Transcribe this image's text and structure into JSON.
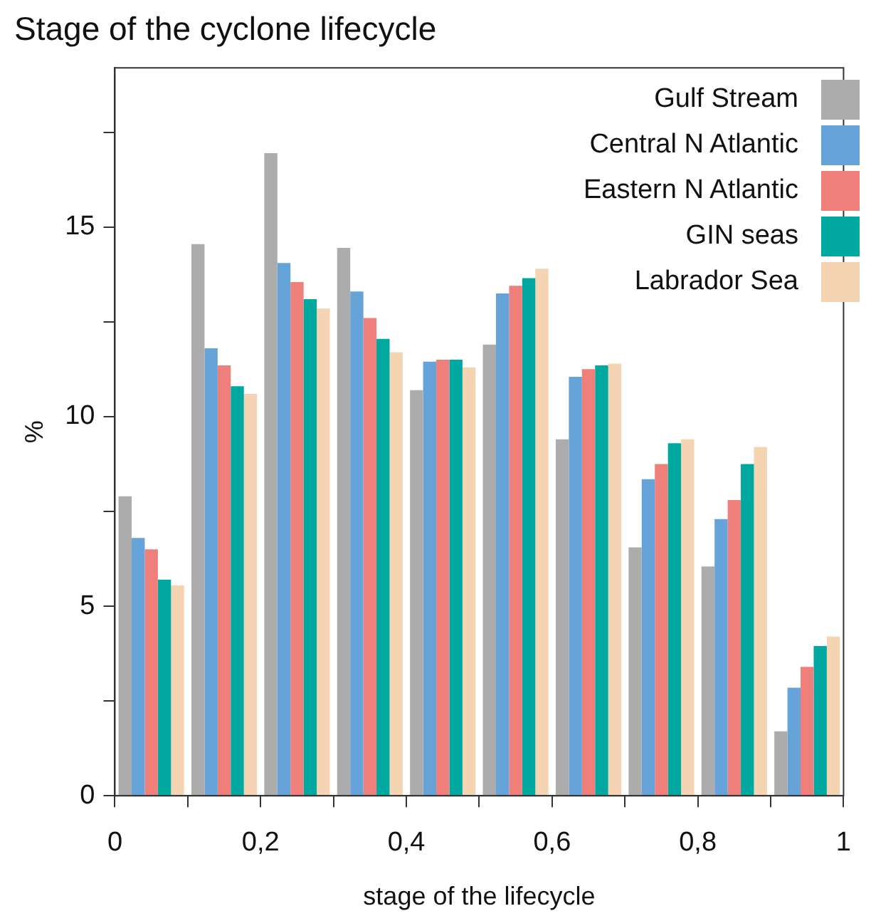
{
  "chart_data": {
    "type": "histogram",
    "title": "Stage of the cyclone lifecycle",
    "xlabel": "stage of the lifecycle",
    "ylabel": "%",
    "bins": [
      0,
      0.1,
      0.2,
      0.3,
      0.4,
      0.5,
      0.6,
      0.7,
      0.8,
      0.9,
      1
    ],
    "series": [
      {
        "name": "Gulf Stream",
        "color": "#acacac",
        "values": [
          7.9,
          14.55,
          16.95,
          14.45,
          10.7,
          11.9,
          9.4,
          6.55,
          6.05,
          1.7
        ]
      },
      {
        "name": "Central N Atlantic",
        "color": "#66a3d9",
        "values": [
          6.8,
          11.8,
          14.05,
          13.3,
          11.45,
          13.25,
          11.05,
          8.35,
          7.3,
          2.85
        ]
      },
      {
        "name": "Eastern N Atlantic",
        "color": "#ef7f7a",
        "values": [
          6.5,
          11.35,
          13.55,
          12.6,
          11.5,
          13.45,
          11.25,
          8.75,
          7.8,
          3.4
        ]
      },
      {
        "name": "GIN seas",
        "color": "#00a8a0",
        "values": [
          5.7,
          10.8,
          13.1,
          12.05,
          11.5,
          13.65,
          11.35,
          9.3,
          8.75,
          3.95
        ]
      },
      {
        "name": "Labrador Sea",
        "color": "#f4d4b2",
        "values": [
          5.55,
          10.6,
          12.85,
          11.7,
          11.3,
          13.9,
          11.4,
          9.4,
          9.2,
          4.2
        ]
      }
    ],
    "xlim": [
      0,
      1
    ],
    "xticks": [
      0,
      {
        "value": 0.1,
        "label": null
      },
      {
        "value": 0.2,
        "label": "0,2"
      },
      {
        "value": 0.3,
        "label": null
      },
      {
        "value": 0.4,
        "label": "0,4"
      },
      {
        "value": 0.5,
        "label": null
      },
      {
        "value": 0.6,
        "label": "0,6"
      },
      {
        "value": 0.7,
        "label": null
      },
      {
        "value": 0.8,
        "label": "0,8"
      },
      {
        "value": 0.9,
        "label": null
      },
      1
    ],
    "ylim": [
      0,
      19.2
    ],
    "yticks": [
      0,
      {
        "value": 2.5,
        "label": null
      },
      5,
      {
        "value": 7.5,
        "label": null
      },
      10,
      {
        "value": 12.5,
        "label": null
      },
      15,
      {
        "value": 17.5,
        "label": null
      }
    ],
    "grid": false,
    "legend": "top right"
  }
}
